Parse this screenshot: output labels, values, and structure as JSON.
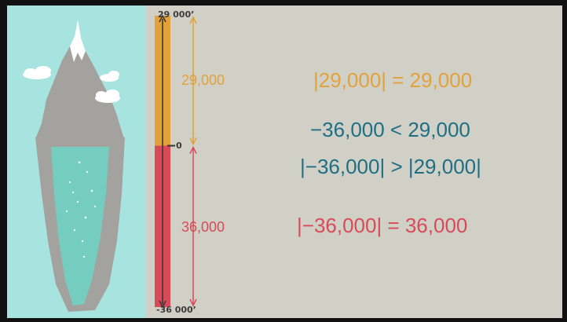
{
  "colors": {
    "orange": "#e3a13a",
    "red": "#d84a58",
    "teal": "#1f6e84",
    "panel_bg": "#a8e4df",
    "stage_bg": "#d1d0c7"
  },
  "icons": [
    "mountain-icon",
    "cloud-icon",
    "underwater-trench-icon"
  ],
  "scale": {
    "top_label": "29 000’",
    "zero_label": "0",
    "bottom_label": "-36 000’",
    "top_value": 29000,
    "bottom_value": -36000
  },
  "segments": [
    {
      "name": "above-sea",
      "length_label": "29,000",
      "from": 0,
      "to": 29000,
      "color": "#e3a13a"
    },
    {
      "name": "below-sea",
      "length_label": "36,000",
      "from": -36000,
      "to": 0,
      "color": "#d84a58"
    }
  ],
  "equations": [
    {
      "text": "|29,000|  =  29,000",
      "color": "#e3a13a"
    },
    {
      "text": "−36,000  <  29,000",
      "color": "#1f6e84"
    },
    {
      "text": "|−36,000|  >  |29,000|",
      "color": "#1f6e84"
    },
    {
      "text": "|−36,000|  =  36,000",
      "color": "#d84a58"
    }
  ]
}
